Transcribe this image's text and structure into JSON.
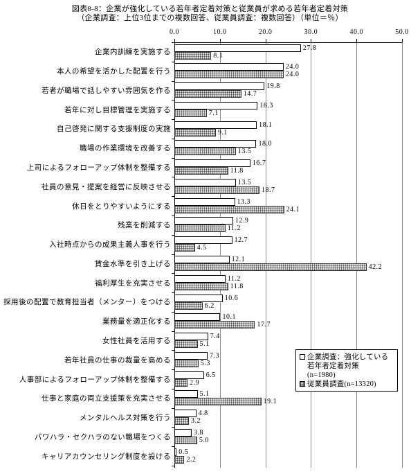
{
  "title": {
    "line1": "図表8-8：企業が強化している若年者定着対策と従業員が求める若年者定着対策",
    "line2": "（企業調査：上位3位までの複数回答、従業員調査：複数回答）（単位＝％）"
  },
  "legend": {
    "company_label": "企業調査：強化している若年者定着対策 (n=1980)",
    "employee_label": "従業員調査(n=13320)"
  },
  "chart_data": {
    "type": "bar",
    "orientation": "horizontal",
    "title": "図表8-8：企業が強化している若年者定着対策と従業員が求める若年者定着対策",
    "subtitle": "（企業調査：上位3位までの複数回答、従業員調査：複数回答）（単位＝％）",
    "xlim": [
      0,
      50
    ],
    "x_ticks": [
      0.0,
      10.0,
      20.0,
      30.0,
      40.0,
      50.0
    ],
    "grid": true,
    "legend_position": "middle-right",
    "categories": [
      "企業内訓練を実施する",
      "本人の希望を活かした配置を行う",
      "若者が職場で話しやすい雰囲気を作る",
      "若年に対し目標管理を実施する",
      "自己啓発に関する支援制度の実施",
      "職場の作業環境を改善する",
      "上司によるフォローアップ体制を整備する",
      "社員の意見・提案を経営に反映させる",
      "休日をとりやすいようにする",
      "残業を削減する",
      "入社時点からの成果主義人事を行う",
      "賃金水準を引き上げる",
      "福利厚生を充実させる",
      "採用後の配置で教育担当者（メンター）をつける",
      "業務量を適正化する",
      "女性社員を活用する",
      "若年社員の仕事の裁量を高める",
      "人事部によるフォローアップ体制を整備する",
      "仕事と家庭の両立支援策を充実させる",
      "メンタルヘルス対策を行う",
      "パワハラ・セクハラのない職場をつくる",
      "キャリアカウンセリング制度を設ける"
    ],
    "series": [
      {
        "name": "企業調査：強化している若年者定着対策(n=1980)",
        "values": [
          27.8,
          24.0,
          19.8,
          18.3,
          18.1,
          18.0,
          16.7,
          13.5,
          13.3,
          12.9,
          12.7,
          12.1,
          11.2,
          10.6,
          10.1,
          7.4,
          7.3,
          6.5,
          5.1,
          4.8,
          3.8,
          0.5
        ]
      },
      {
        "name": "従業員調査(n=13320)",
        "values": [
          8.1,
          24.0,
          14.7,
          7.1,
          9.1,
          13.5,
          11.8,
          18.7,
          24.1,
          11.2,
          4.5,
          42.2,
          11.8,
          6.2,
          17.7,
          5.1,
          5.3,
          2.9,
          19.1,
          3.2,
          5.0,
          2.2
        ]
      }
    ]
  }
}
